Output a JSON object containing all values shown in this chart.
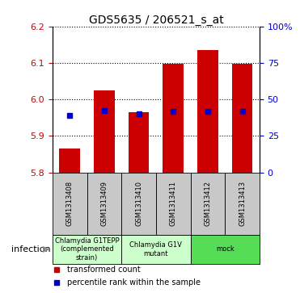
{
  "title": "GDS5635 / 206521_s_at",
  "samples": [
    "GSM1313408",
    "GSM1313409",
    "GSM1313410",
    "GSM1313411",
    "GSM1313412",
    "GSM1313413"
  ],
  "bar_values": [
    5.865,
    6.025,
    5.965,
    6.098,
    6.135,
    6.098
  ],
  "percentile_values": [
    5.955,
    5.97,
    5.96,
    5.968,
    5.968,
    5.968
  ],
  "ymin": 5.8,
  "ymax": 6.2,
  "yticks": [
    5.8,
    5.9,
    6.0,
    6.1,
    6.2
  ],
  "right_yticks": [
    0,
    25,
    50,
    75,
    100
  ],
  "right_ytick_labels": [
    "0",
    "25",
    "50",
    "75",
    "100%"
  ],
  "bar_color": "#cc0000",
  "percentile_color": "#0000cc",
  "bar_width": 0.6,
  "group_ranges": [
    [
      0,
      1
    ],
    [
      2,
      3
    ],
    [
      4,
      5
    ]
  ],
  "group_labels": [
    "Chlamydia G1TEPP\n(complemented\nstrain)",
    "Chlamydia G1V\nmutant",
    "mock"
  ],
  "group_facecolors": [
    "#ccffcc",
    "#ccffcc",
    "#55dd55"
  ],
  "sample_box_color": "#c8c8c8",
  "xlabel_factor": "infection",
  "legend_red": "transformed count",
  "legend_blue": "percentile rank within the sample",
  "tick_color_left": "#cc0000",
  "tick_color_right": "#0000cc"
}
